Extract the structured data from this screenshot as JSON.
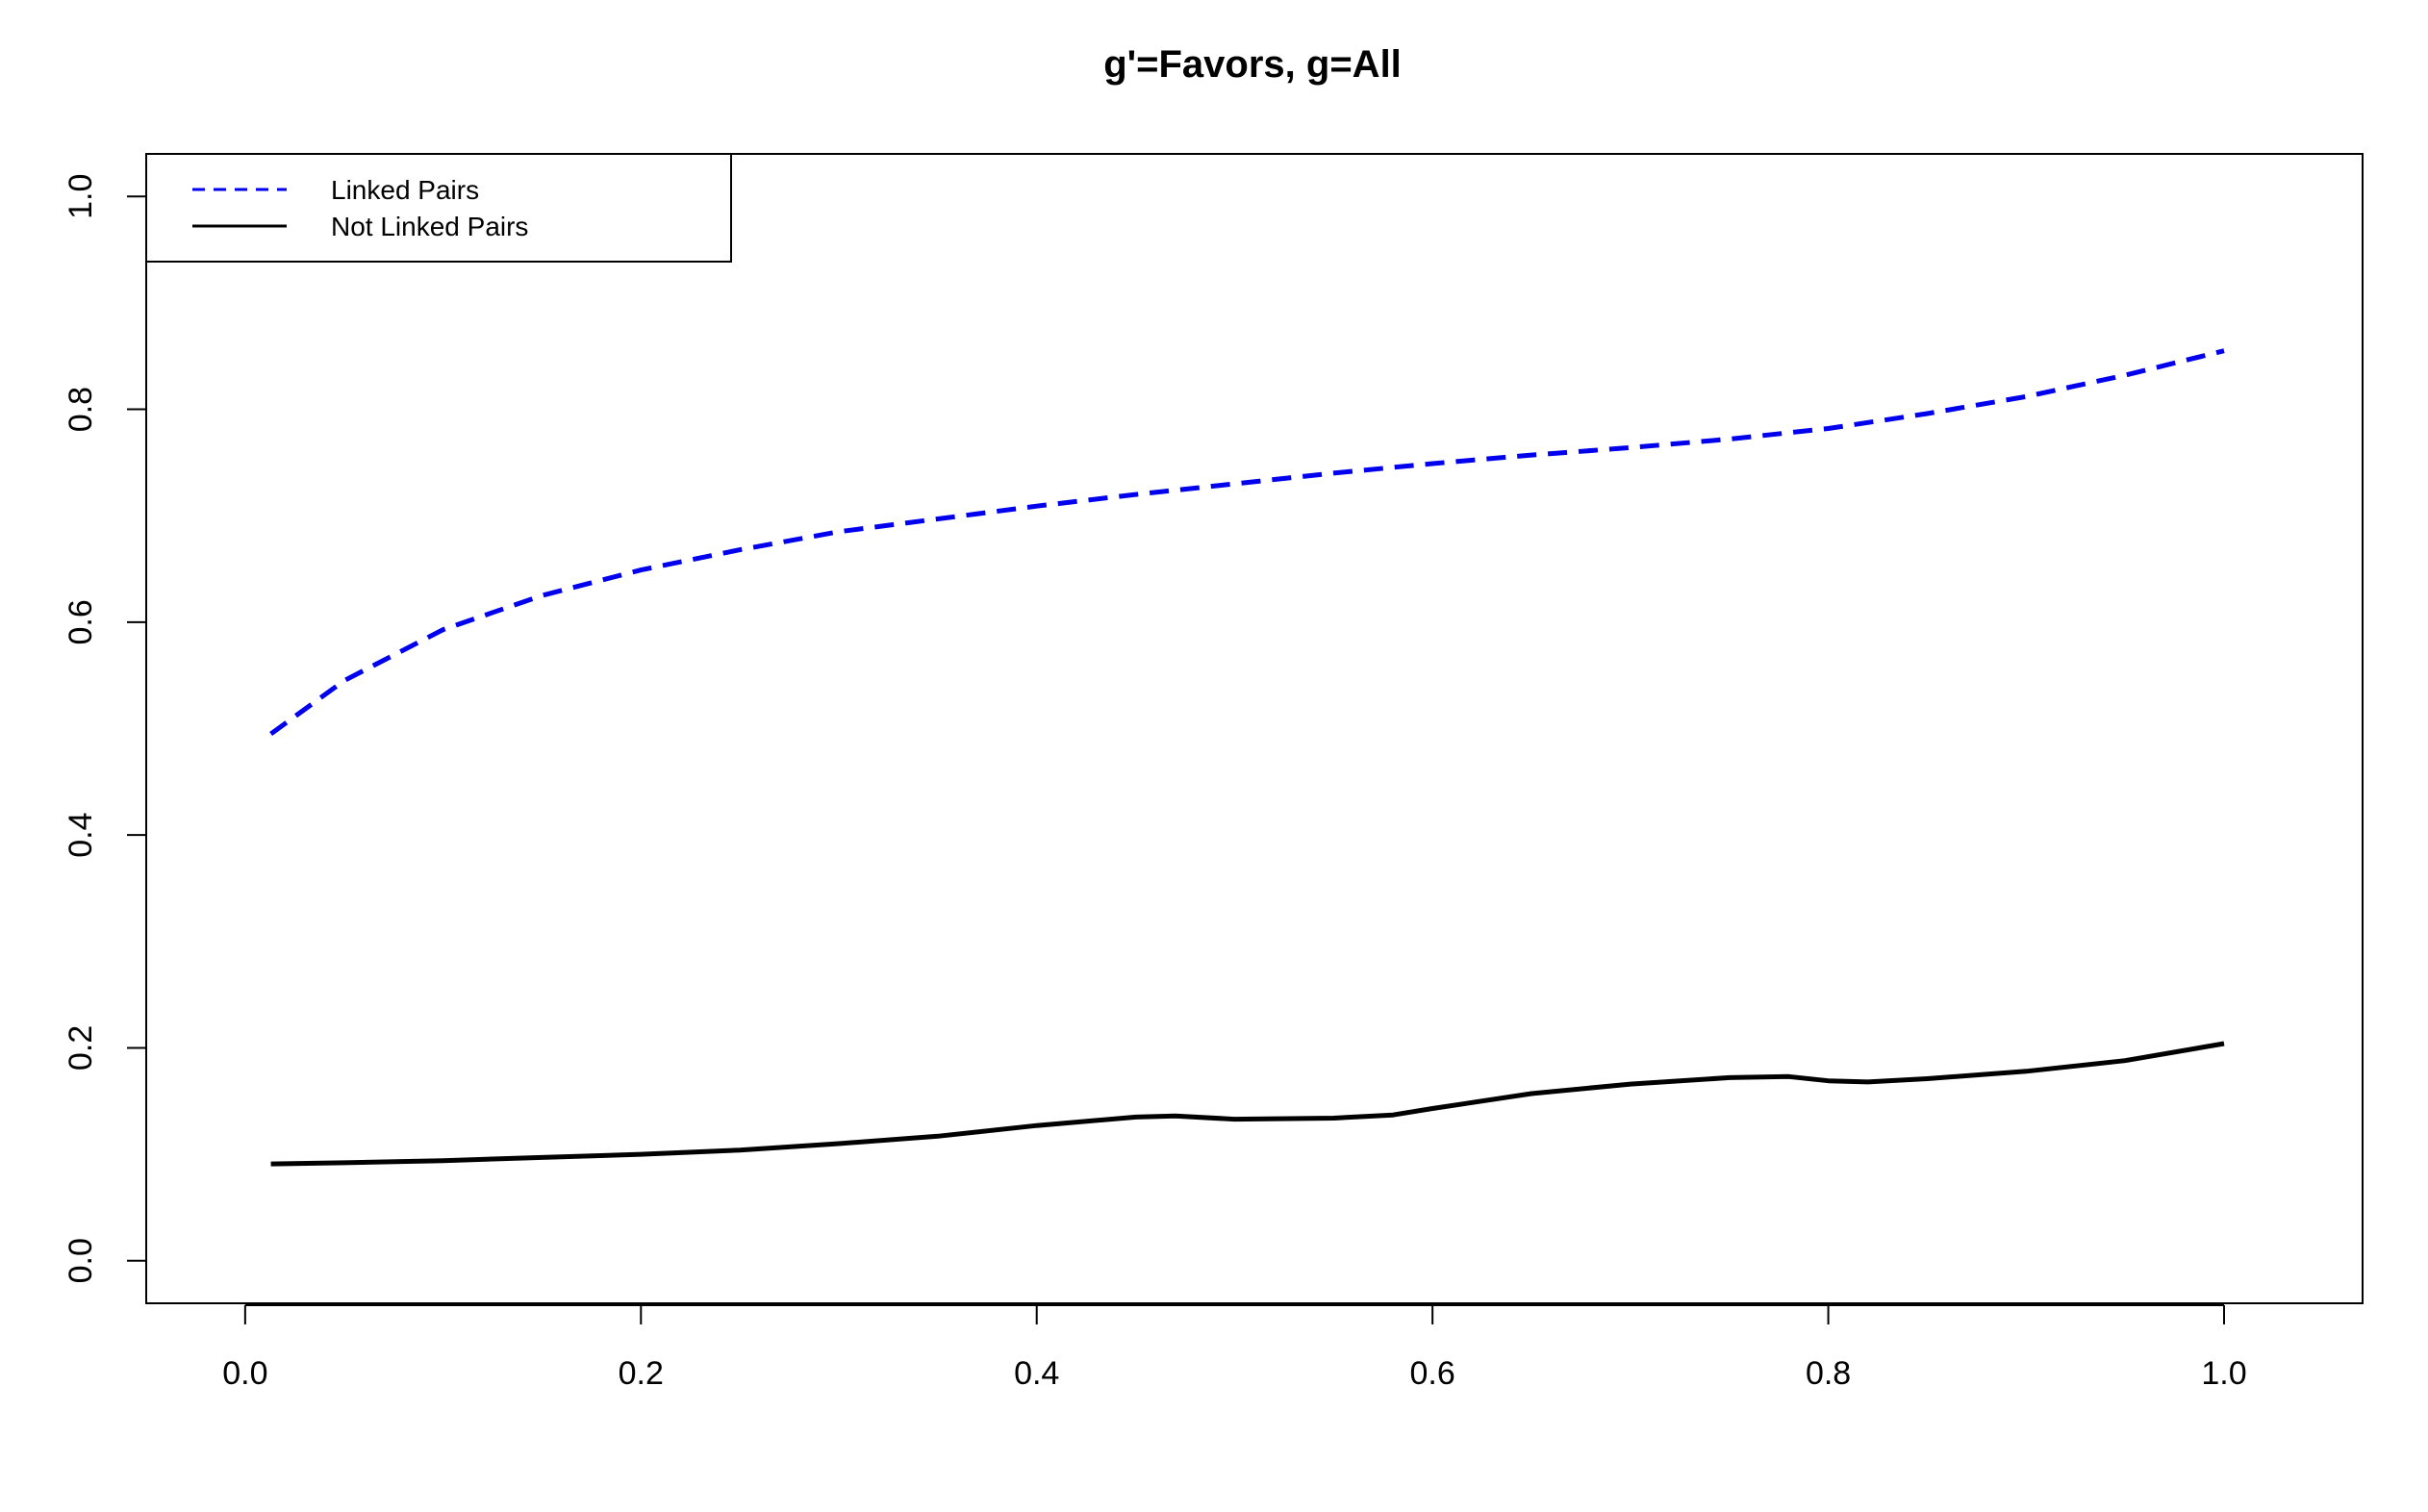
{
  "chart_data": {
    "type": "line",
    "title": "g'=Favors, g=All",
    "xlabel": "",
    "ylabel": "",
    "xlim": [
      -0.05,
      1.07
    ],
    "ylim": [
      -0.04,
      1.04
    ],
    "x_ticks": [
      0.0,
      0.2,
      0.4,
      0.6,
      0.8,
      1.0
    ],
    "x_tick_labels": [
      "0.0",
      "0.2",
      "0.4",
      "0.6",
      "0.8",
      "1.0"
    ],
    "y_ticks": [
      0.0,
      0.2,
      0.4,
      0.6,
      0.8,
      1.0
    ],
    "y_tick_labels": [
      "0.0",
      "0.2",
      "0.4",
      "0.6",
      "0.8",
      "1.0"
    ],
    "grid": false,
    "legend_position": "top-left",
    "series": [
      {
        "name": "Linked Pairs",
        "color": "#0000ee",
        "style": "dashed",
        "x": [
          0.013,
          0.05,
          0.1,
          0.15,
          0.2,
          0.25,
          0.3,
          0.35,
          0.4,
          0.45,
          0.5,
          0.55,
          0.6,
          0.65,
          0.7,
          0.75,
          0.8,
          0.85,
          0.9,
          0.95,
          1.0
        ],
        "y": [
          0.495,
          0.545,
          0.593,
          0.625,
          0.649,
          0.668,
          0.685,
          0.697,
          0.709,
          0.72,
          0.73,
          0.74,
          0.749,
          0.757,
          0.764,
          0.772,
          0.782,
          0.796,
          0.812,
          0.832,
          0.855
        ]
      },
      {
        "name": "Not Linked Pairs",
        "color": "#000000",
        "style": "solid",
        "x": [
          0.013,
          0.05,
          0.1,
          0.15,
          0.2,
          0.25,
          0.3,
          0.35,
          0.4,
          0.45,
          0.47,
          0.5,
          0.55,
          0.58,
          0.6,
          0.65,
          0.7,
          0.75,
          0.78,
          0.8,
          0.82,
          0.85,
          0.9,
          0.95,
          1.0
        ],
        "y": [
          0.091,
          0.092,
          0.094,
          0.097,
          0.1,
          0.104,
          0.11,
          0.117,
          0.127,
          0.135,
          0.136,
          0.133,
          0.134,
          0.137,
          0.143,
          0.157,
          0.166,
          0.172,
          0.173,
          0.169,
          0.168,
          0.171,
          0.178,
          0.188,
          0.204
        ]
      }
    ]
  }
}
